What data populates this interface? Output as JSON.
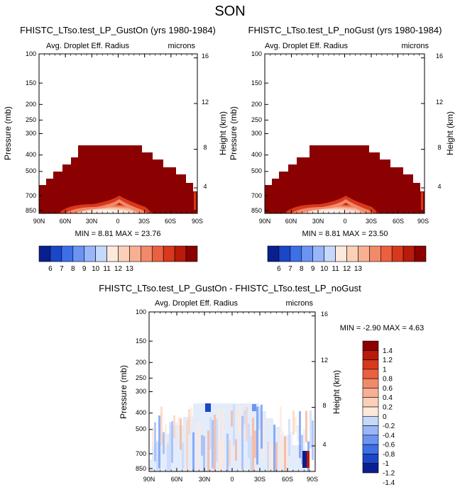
{
  "page_title": "SON",
  "colorbar_labels": {
    "absolute": [
      "6",
      "7",
      "8",
      "9",
      "10",
      "11",
      "12",
      "13"
    ],
    "difference": [
      "1.4",
      "1.2",
      "1",
      "0.8",
      "0.6",
      "0.4",
      "0.2",
      "0",
      "-0.2",
      "-0.4",
      "-0.6",
      "-0.8",
      "-1",
      "-1.2",
      "-1.4"
    ]
  },
  "colors": {
    "absolute_levels": [
      "#0a1f8f",
      "#1b46c8",
      "#3f6fe6",
      "#6b94f2",
      "#98b6f8",
      "#c6d8fb",
      "#fde8dc",
      "#fcd0b8",
      "#f8b093",
      "#f28a6a",
      "#ea6040",
      "#d8381c",
      "#b81a0c",
      "#8b0000"
    ],
    "difference_levels": [
      "#8b0000",
      "#b81a0c",
      "#d8381c",
      "#ea6040",
      "#f28a6a",
      "#f8b093",
      "#fcd0b8",
      "#fde8dc",
      "#c6d8fb",
      "#98b6f8",
      "#6b94f2",
      "#3f6fe6",
      "#1b46c8",
      "#0a1f8f"
    ]
  },
  "chart_data": [
    {
      "type": "heatmap",
      "title": "FHISTC_LTso.test_LP_GustOn (yrs 1980-1984)",
      "subtitle_left": "Avg. Droplet Eff. Radius",
      "subtitle_right": "microns",
      "ylabel": "Pressure (mb)",
      "ylabel_right": "Height (km)",
      "x_ticks": [
        "90N",
        "60N",
        "30N",
        "0",
        "30S",
        "60S",
        "90S"
      ],
      "y_ticks": [
        "100",
        "150",
        "200",
        "250",
        "300",
        "400",
        "500",
        "700",
        "850"
      ],
      "y_ticks_right": [
        "16",
        "12",
        "8",
        "4"
      ],
      "stats": "MIN =  8.81  MAX = 23.76",
      "min": 8.81,
      "max": 23.76,
      "levels": [
        6,
        7,
        8,
        9,
        10,
        11,
        12,
        13
      ],
      "cmap": "blue-white-red"
    },
    {
      "type": "heatmap",
      "title": "FHISTC_LTso.test_LP_noGust (yrs 1980-1984)",
      "subtitle_left": "Avg. Droplet Eff. Radius",
      "subtitle_right": "microns",
      "ylabel": "Pressure (mb)",
      "ylabel_right": "Height (km)",
      "x_ticks": [
        "90N",
        "60N",
        "30N",
        "0",
        "30S",
        "60S",
        "90S"
      ],
      "y_ticks": [
        "100",
        "150",
        "200",
        "250",
        "300",
        "400",
        "500",
        "700",
        "850"
      ],
      "y_ticks_right": [
        "16",
        "12",
        "8",
        "4"
      ],
      "stats": "MIN =  8.81  MAX = 23.50",
      "min": 8.81,
      "max": 23.5,
      "levels": [
        6,
        7,
        8,
        9,
        10,
        11,
        12,
        13
      ],
      "cmap": "blue-white-red"
    },
    {
      "type": "heatmap",
      "title": "FHISTC_LTso.test_LP_GustOn - FHISTC_LTso.test_LP_noGust",
      "subtitle_left": "Avg. Droplet Eff. Radius",
      "subtitle_right": "microns",
      "ylabel": "Pressure (mb)",
      "ylabel_right": "Height (km)",
      "x_ticks": [
        "90N",
        "60N",
        "30N",
        "0",
        "30S",
        "60S",
        "90S"
      ],
      "y_ticks": [
        "100",
        "150",
        "200",
        "250",
        "300",
        "400",
        "500",
        "700",
        "850"
      ],
      "y_ticks_right": [
        "16",
        "12",
        "8",
        "4"
      ],
      "stats": "MIN = -2.90  MAX =  4.63",
      "min": -2.9,
      "max": 4.63,
      "levels": [
        -1.4,
        -1.2,
        -1,
        -0.8,
        -0.6,
        -0.4,
        -0.2,
        0,
        0.2,
        0.4,
        0.6,
        0.8,
        1,
        1.2,
        1.4
      ],
      "cmap": "blue-white-red"
    }
  ]
}
